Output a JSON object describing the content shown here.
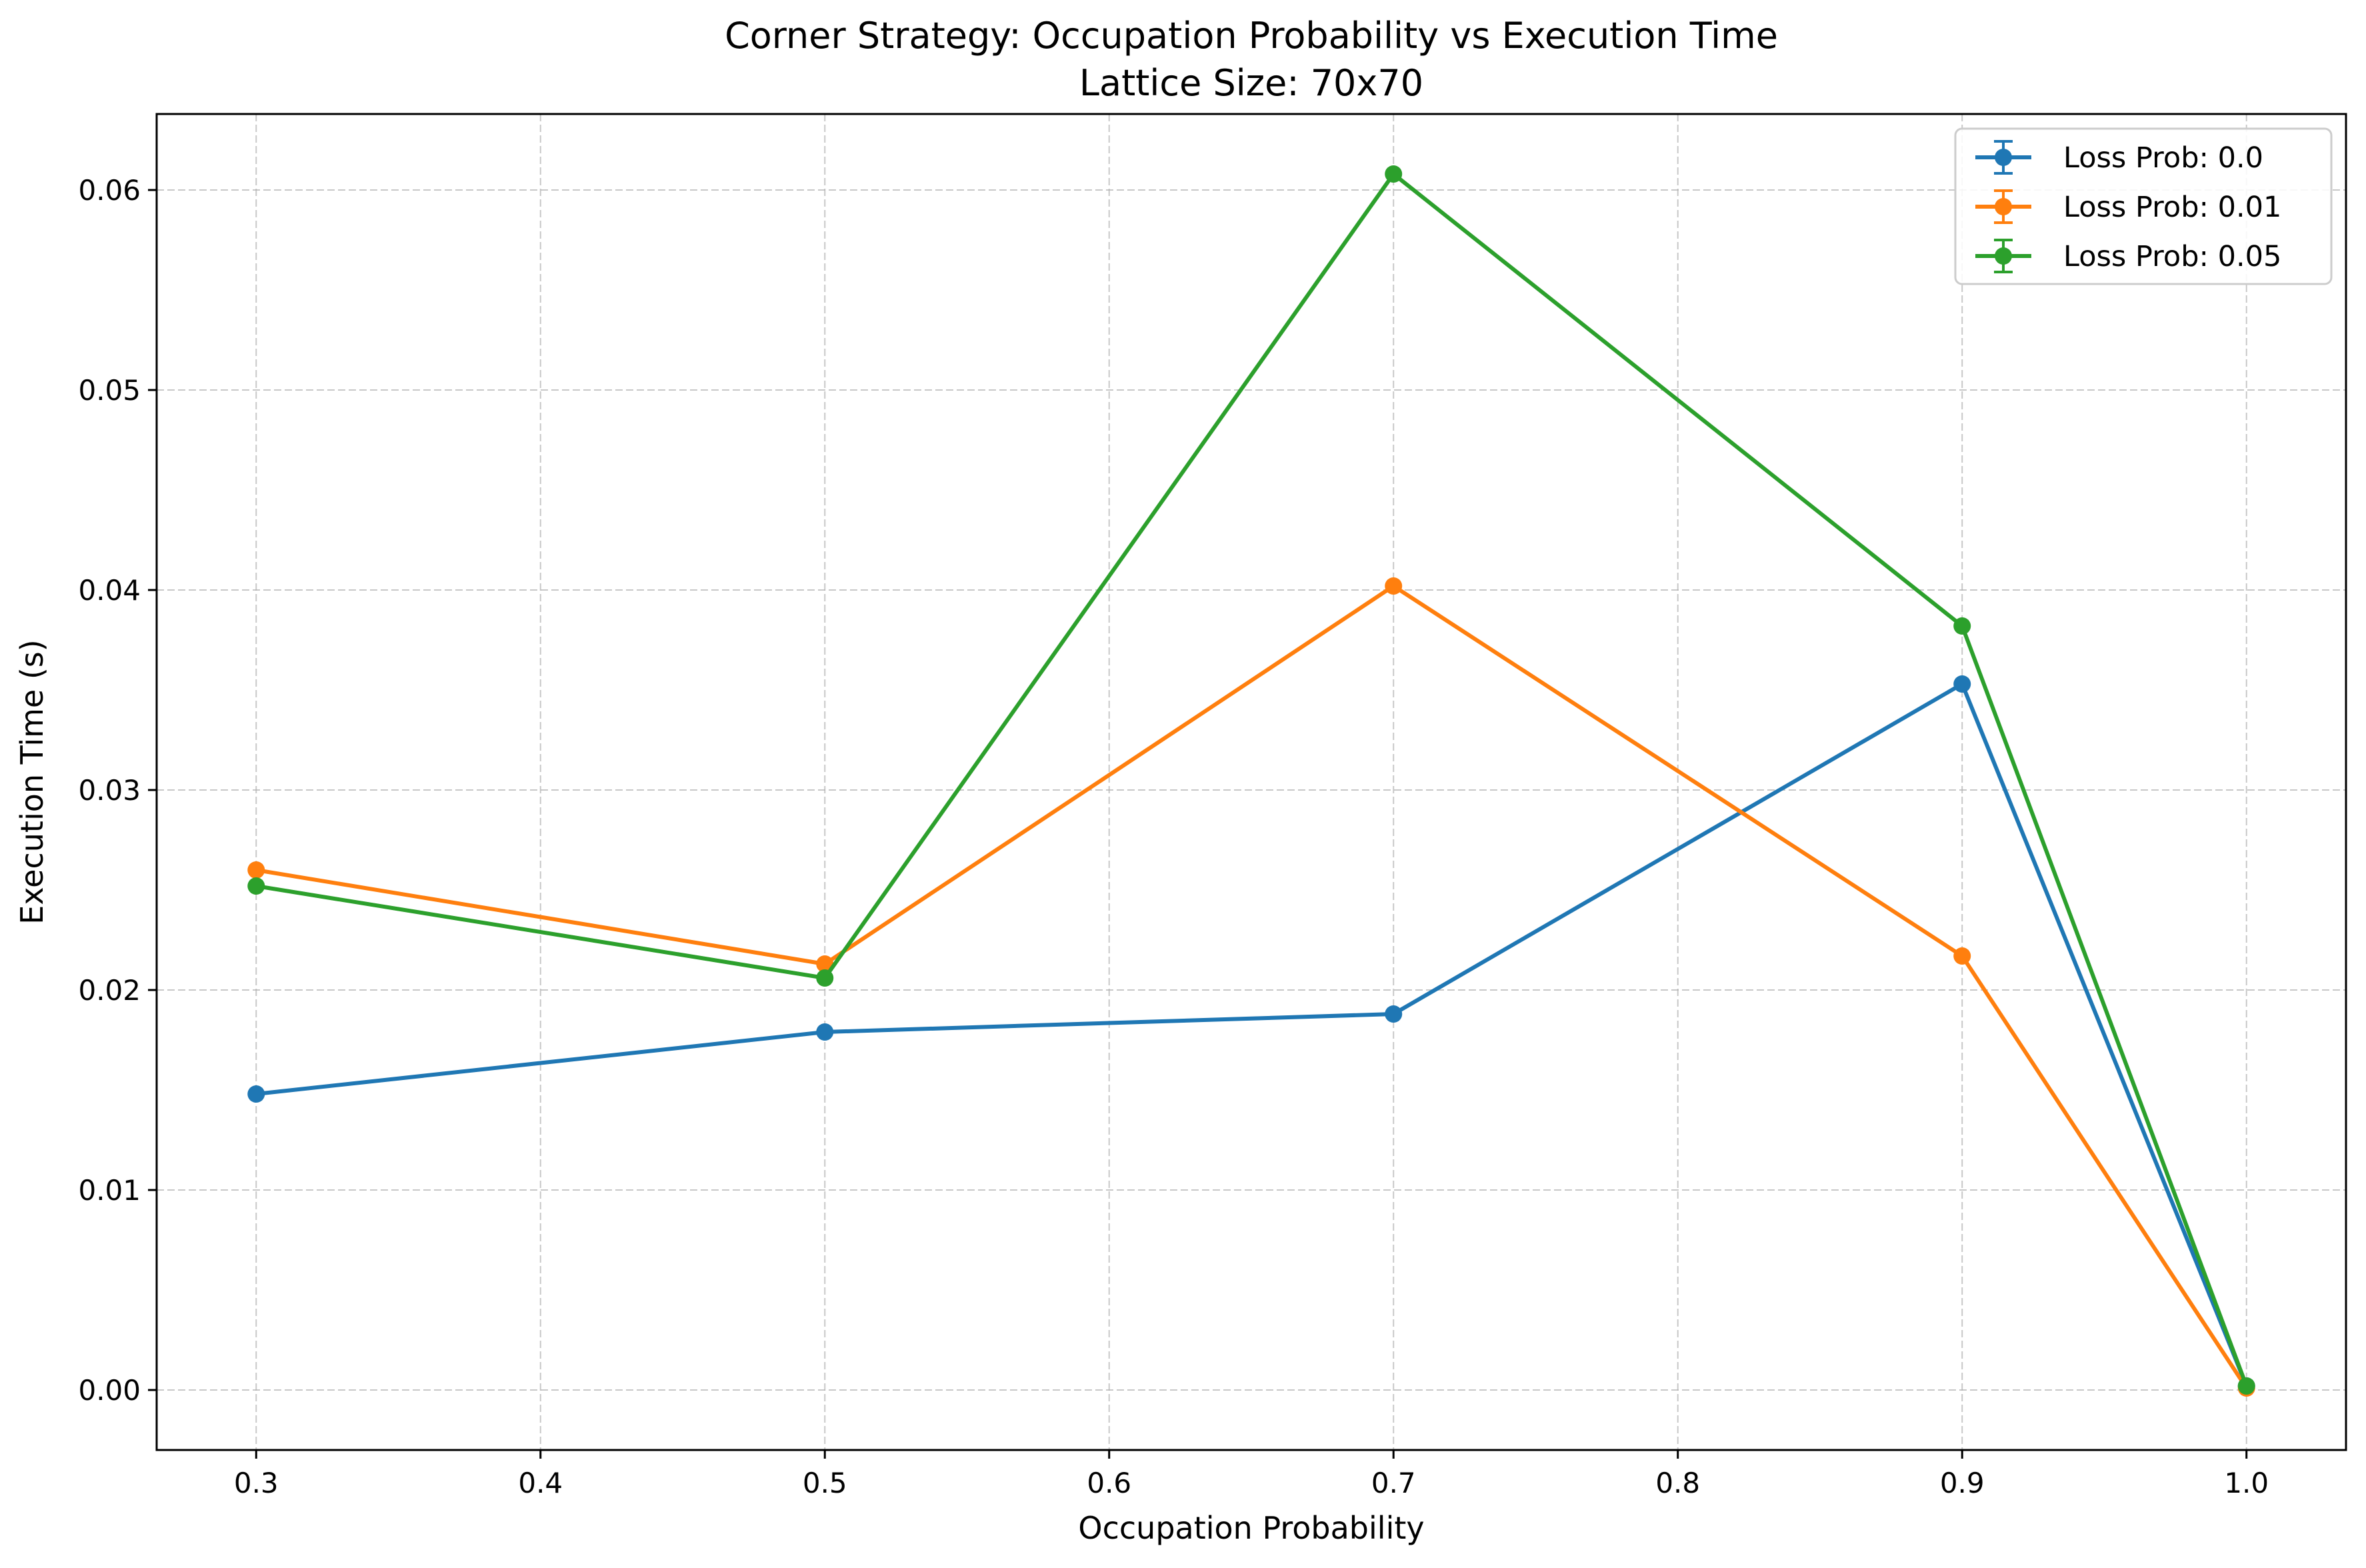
{
  "chart_data": {
    "type": "line",
    "title": "Corner Strategy: Occupation Probability vs Execution Time",
    "subtitle": "Lattice Size: 70x70",
    "xlabel": "Occupation Probability",
    "ylabel": "Execution Time (s)",
    "xlim": [
      0.265,
      1.035
    ],
    "ylim": [
      -0.003,
      0.0638
    ],
    "xticks": [
      0.3,
      0.4,
      0.5,
      0.6,
      0.7,
      0.8,
      0.9,
      1.0
    ],
    "xtick_labels": [
      "0.3",
      "0.4",
      "0.5",
      "0.6",
      "0.7",
      "0.8",
      "0.9",
      "1.0"
    ],
    "yticks": [
      0.0,
      0.01,
      0.02,
      0.03,
      0.04,
      0.05,
      0.06
    ],
    "ytick_labels": [
      "0.00",
      "0.01",
      "0.02",
      "0.03",
      "0.04",
      "0.05",
      "0.06"
    ],
    "grid": true,
    "legend_position": "top-right",
    "x": [
      0.3,
      0.5,
      0.7,
      0.9,
      1.0
    ],
    "series": [
      {
        "name": "Loss Prob: 0.0",
        "color": "#1f77b4",
        "values": [
          0.0148,
          0.0179,
          0.0188,
          0.0353,
          0.0002
        ]
      },
      {
        "name": "Loss Prob: 0.01",
        "color": "#ff7f0e",
        "values": [
          0.026,
          0.0213,
          0.0402,
          0.0217,
          0.0001
        ]
      },
      {
        "name": "Loss Prob: 0.05",
        "color": "#2ca02c",
        "values": [
          0.0252,
          0.0206,
          0.0608,
          0.0382,
          0.0002
        ]
      }
    ]
  }
}
